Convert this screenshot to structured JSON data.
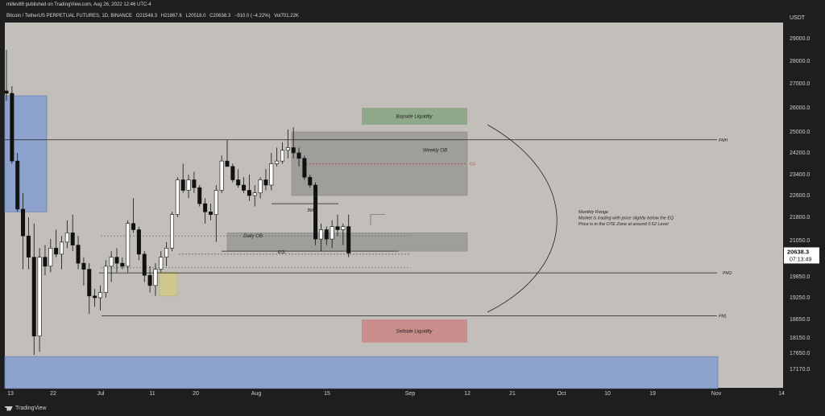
{
  "header": {
    "published": "millev89 published on TradingView.com, Aug 26, 2022 12:46 UTC-4",
    "symbol": "Bitcoin / TetherUS PERPETUAL FUTURES, 1D, BINANCE",
    "open": "O21548.3",
    "high": "H21867.6",
    "low": "L20518.0",
    "close": "C20638.3",
    "change": "−910.0 (−4.22%)",
    "volume": "Vol701.22K"
  },
  "footer": {
    "brand": "TradingView"
  },
  "colors": {
    "background": "#c2bfba",
    "frame": "#1e1e1e",
    "bull": "#ffffff",
    "bear": "#111111",
    "blue_zone": "#8da2cc",
    "green_zone": "#8fa88a",
    "red_zone": "#c98d8b",
    "grey_zone": "#a09e9b",
    "yellow_zone": "#cfc790",
    "price_tag": "#ffffff"
  },
  "chart_data": {
    "type": "candlestick",
    "currency_label": "USDT",
    "y_ticks": [
      29000,
      28000,
      27000,
      26000,
      25000,
      24200,
      23400,
      22600,
      21800,
      21050,
      19850,
      19250,
      18650,
      18150,
      17650,
      17170
    ],
    "y_tick_labels": [
      "29000.0",
      "28000.0",
      "27000.0",
      "26000.0",
      "25000.0",
      "24200.0",
      "23400.0",
      "22600.0",
      "21800.0",
      "21050.0",
      "19850.0",
      "19250.0",
      "18650.0",
      "18150.0",
      "17650.0",
      "17170.0"
    ],
    "x_ticks": [
      "13",
      "22",
      "Jul",
      "11",
      "20",
      "Aug",
      "15",
      "Sep",
      "12",
      "21",
      "Oct",
      "10",
      "19",
      "Nov",
      "14"
    ],
    "start_date": "2022-06-12",
    "last_price": "20638.3",
    "countdown": "07:13:49",
    "candles": [
      [
        26700,
        28500,
        26300,
        26600
      ],
      [
        26600,
        26900,
        23800,
        23900
      ],
      [
        23900,
        24200,
        22000,
        22100
      ],
      [
        22100,
        22700,
        20100,
        21200
      ],
      [
        21200,
        21800,
        20100,
        20500
      ],
      [
        20500,
        21600,
        17600,
        18200
      ],
      [
        18200,
        20800,
        17700,
        20500
      ],
      [
        20500,
        20900,
        19900,
        20200
      ],
      [
        20200,
        21100,
        20000,
        20800
      ],
      [
        20800,
        21400,
        20500,
        20600
      ],
      [
        20600,
        21200,
        20100,
        21000
      ],
      [
        21000,
        21700,
        20800,
        21300
      ],
      [
        21300,
        21900,
        20700,
        20900
      ],
      [
        20900,
        21200,
        20100,
        20300
      ],
      [
        20300,
        20500,
        19600,
        20100
      ],
      [
        20100,
        20300,
        18800,
        19300
      ],
      [
        19300,
        19500,
        19000,
        19250
      ],
      [
        19250,
        19600,
        18900,
        19400
      ],
      [
        19400,
        20400,
        19250,
        20200
      ],
      [
        20200,
        20700,
        19700,
        20500
      ],
      [
        20500,
        20800,
        20000,
        20300
      ],
      [
        20300,
        20500,
        20100,
        20200
      ],
      [
        20200,
        21700,
        20000,
        21600
      ],
      [
        21600,
        22500,
        21300,
        21400
      ],
      [
        21400,
        21500,
        20400,
        20600
      ],
      [
        20600,
        20700,
        19700,
        19900
      ],
      [
        19900,
        20200,
        19400,
        19600
      ],
      [
        19600,
        20300,
        19300,
        20100
      ],
      [
        20100,
        20700,
        20000,
        20500
      ],
      [
        20500,
        21000,
        20200,
        20800
      ],
      [
        20800,
        22000,
        20700,
        21900
      ],
      [
        21900,
        23300,
        21800,
        23200
      ],
      [
        23200,
        23800,
        22700,
        22800
      ],
      [
        22800,
        23400,
        22500,
        23200
      ],
      [
        23200,
        23500,
        22700,
        22900
      ],
      [
        22900,
        23000,
        22200,
        22300
      ],
      [
        22300,
        22500,
        21600,
        22000
      ],
      [
        22000,
        22300,
        21700,
        21900
      ],
      [
        21900,
        23000,
        21000,
        22800
      ],
      [
        22800,
        24100,
        22700,
        23900
      ],
      [
        23900,
        24700,
        23800,
        23700
      ],
      [
        23700,
        23800,
        23100,
        23200
      ],
      [
        23200,
        23600,
        22900,
        23000
      ],
      [
        23000,
        23300,
        22700,
        22800
      ],
      [
        22800,
        23400,
        22400,
        22600
      ],
      [
        22600,
        23000,
        22200,
        22700
      ],
      [
        22700,
        23300,
        22500,
        23200
      ],
      [
        23200,
        23600,
        22800,
        23000
      ],
      [
        23000,
        24200,
        22800,
        23800
      ],
      [
        23800,
        24400,
        23700,
        23900
      ],
      [
        23900,
        24600,
        23800,
        24300
      ],
      [
        24300,
        25100,
        24000,
        24400
      ],
      [
        24400,
        25200,
        24000,
        24200
      ],
      [
        24200,
        24400,
        23700,
        24000
      ],
      [
        24000,
        24100,
        23200,
        23300
      ],
      [
        23300,
        23400,
        22900,
        23000
      ],
      [
        23000,
        23100,
        20900,
        21100
      ],
      [
        21100,
        21600,
        20700,
        21400
      ],
      [
        21400,
        21500,
        20900,
        21100
      ],
      [
        21100,
        21700,
        20800,
        21500
      ],
      [
        21500,
        21900,
        21200,
        21400
      ],
      [
        21400,
        21600,
        20900,
        21500
      ],
      [
        21500,
        21900,
        20500,
        20638
      ]
    ],
    "annotations": {
      "pmh": {
        "label": "PMH",
        "price": 24700
      },
      "pmo": {
        "label": "PMO",
        "price": 19980
      },
      "pml": {
        "label": "PML",
        "price": 18750
      },
      "buyside": {
        "label": "Buyside Liquidity",
        "top": 26000,
        "bottom": 25300
      },
      "sellside": {
        "label": "Sellside Liquidity",
        "top": 18650,
        "bottom": 18000
      },
      "weekly_ob": {
        "label": "Weekly OB",
        "top": 25000,
        "bottom": 22600
      },
      "daily_ob": {
        "label": "Daily OB",
        "top": 21300,
        "bottom": 20700
      },
      "bms": {
        "label": "BMS",
        "price": 22300
      },
      "eql": {
        "label": "EQL",
        "price": 20600
      },
      "fib": {
        "label": "0.5",
        "price": 23800
      },
      "blue_top": {
        "top": 26500,
        "bottom": 22000
      },
      "blue_bottom": {
        "top": 17550,
        "bottom": 16600
      },
      "yellow": {
        "top": 20000,
        "bottom": 19300
      },
      "note": [
        "Monthly Range",
        "Market is trading with price slightly below the EQ",
        "Price is in the OTE Zone at around 0.62 Level"
      ]
    }
  }
}
